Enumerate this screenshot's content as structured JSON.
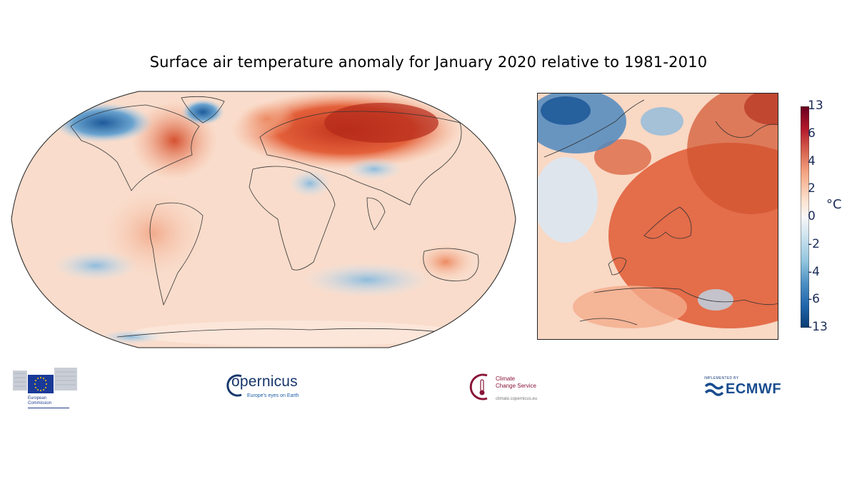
{
  "title": "Surface air temperature anomaly for January 2020 relative to 1981-2010",
  "colorbar": {
    "ticks": [
      "13",
      "6",
      "4",
      "2",
      "0",
      "-2",
      "-4",
      "-6",
      "-13"
    ],
    "unit": "°C",
    "colors": [
      "#0b3b72",
      "#2166ac",
      "#4d8fc4",
      "#92c5de",
      "#d1e5f0",
      "#f7f7f7",
      "#fde0cc",
      "#f4a582",
      "#d6604d",
      "#b2182b",
      "#67001f"
    ]
  },
  "logos": {
    "european_commission": {
      "line1": "European",
      "line2": "Commission"
    },
    "copernicus": {
      "name": "opernicus",
      "tagline": "Europe's eyes on Earth"
    },
    "climate_change_service": {
      "line1": "Climate",
      "line2": "Change Service",
      "url": "climate.copernicus.eu"
    },
    "ecmwf": {
      "implemented_by": "IMPLEMENTED BY",
      "name": "ECMWF"
    }
  }
}
